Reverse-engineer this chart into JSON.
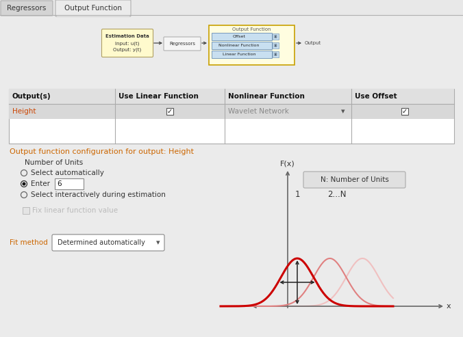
{
  "bg_color": "#e8e8e8",
  "tab_active": "Output Function",
  "tab_inactive": "Regressors",
  "tab_border_color": "#b0b0b0",
  "tab_inactive_color": "#d4d4d4",
  "tab_active_color": "#ebebeb",
  "orange_text": "#cc6600",
  "output_config_text": "Output function configuration for output: Height",
  "number_of_units_label": "Number of Units",
  "radio1": "Select automatically",
  "radio2": "Enter",
  "radio2_value": "6",
  "radio3": "Select interactively during estimation",
  "checkbox_label": "Fix linear function value",
  "fit_method_label": "Fit method",
  "fit_method_value": "Determined automatically",
  "table_headers": [
    "Output(s)",
    "Use Linear Function",
    "Nonlinear Function",
    "Use Offset"
  ],
  "height_text": "Height",
  "wavelet_text": "Wavelet Network",
  "fx_label": "F(x)",
  "x_label": "x",
  "n_units_box": "N: Number of Units",
  "est_line1": "Estimation Data",
  "est_line2": "Input: u(t)",
  "est_line3": "Output: y(t)",
  "reg_label": "Regressors",
  "of_label": "Output Function",
  "of_offset": "Offset",
  "of_nonlinear": "Nonlinear Function",
  "of_linear": "Linear Function",
  "output_label": "Output"
}
